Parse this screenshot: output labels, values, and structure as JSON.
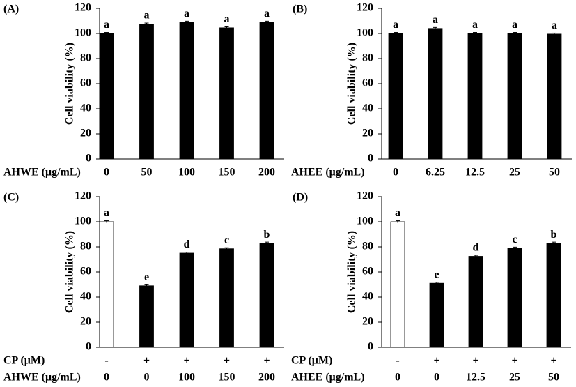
{
  "chart_data": [
    {
      "type": "bar",
      "title": "(A)",
      "y_label": "Cell viability (%)",
      "ylim": [
        0,
        120
      ],
      "yticks": [
        0,
        20,
        40,
        60,
        80,
        100,
        120
      ],
      "category_rows": [
        {
          "name": "AHWE (μg/mL)",
          "labels": [
            "0",
            "50",
            "100",
            "150",
            "200"
          ]
        }
      ],
      "values": [
        100,
        107.5,
        109,
        104.5,
        109
      ],
      "errors": [
        0.8,
        0.8,
        0.8,
        0.8,
        0.8
      ],
      "letters": [
        "a",
        "a",
        "a",
        "a",
        "a"
      ],
      "colors": [
        "#000000",
        "#000000",
        "#000000",
        "#000000",
        "#000000"
      ]
    },
    {
      "type": "bar",
      "title": "(B)",
      "y_label": "Cell viability (%)",
      "ylim": [
        0,
        120
      ],
      "yticks": [
        0,
        20,
        40,
        60,
        80,
        100,
        120
      ],
      "category_rows": [
        {
          "name": "AHEE (μg/mL)",
          "labels": [
            "0",
            "6.25",
            "12.5",
            "25",
            "50"
          ]
        }
      ],
      "values": [
        100,
        104,
        100,
        100,
        99.5
      ],
      "errors": [
        0.8,
        0.8,
        0.8,
        0.8,
        0.8
      ],
      "letters": [
        "a",
        "a",
        "a",
        "a",
        "a"
      ],
      "colors": [
        "#000000",
        "#000000",
        "#000000",
        "#000000",
        "#000000"
      ]
    },
    {
      "type": "bar",
      "title": "(C)",
      "y_label": "Cell viability (%)",
      "ylim": [
        0,
        120
      ],
      "yticks": [
        0,
        20,
        40,
        60,
        80,
        100,
        120
      ],
      "category_rows": [
        {
          "name": "CP (μM)",
          "labels": [
            "-",
            "+",
            "+",
            "+",
            "+"
          ]
        },
        {
          "name": "AHWE (μg/mL)",
          "labels": [
            "0",
            "0",
            "100",
            "150",
            "200"
          ]
        }
      ],
      "values": [
        100,
        49,
        75,
        78.5,
        83
      ],
      "errors": [
        0.8,
        0.8,
        0.8,
        0.8,
        0.8
      ],
      "letters": [
        "a",
        "e",
        "d",
        "c",
        "b"
      ],
      "colors": [
        "#ffffff",
        "#000000",
        "#000000",
        "#000000",
        "#000000"
      ]
    },
    {
      "type": "bar",
      "title": "(D)",
      "y_label": "Cell viability (%)",
      "ylim": [
        0,
        120
      ],
      "yticks": [
        0,
        20,
        40,
        60,
        80,
        100,
        120
      ],
      "category_rows": [
        {
          "name": "CP (μM)",
          "labels": [
            "-",
            "+",
            "+",
            "+",
            "+"
          ]
        },
        {
          "name": "AHEE (μg/mL)",
          "labels": [
            "0",
            "0",
            "12.5",
            "25",
            "50"
          ]
        }
      ],
      "values": [
        100,
        51,
        72.5,
        79,
        83
      ],
      "errors": [
        0.8,
        0.8,
        0.8,
        0.8,
        0.8
      ],
      "letters": [
        "a",
        "e",
        "d",
        "c",
        "b"
      ],
      "colors": [
        "#ffffff",
        "#000000",
        "#000000",
        "#000000",
        "#000000"
      ]
    }
  ]
}
